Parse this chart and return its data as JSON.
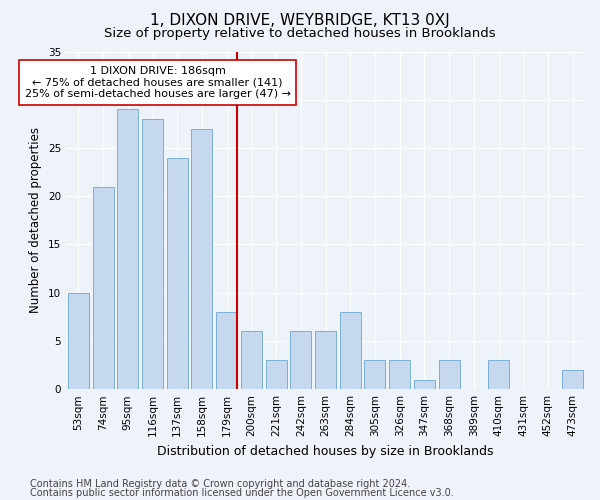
{
  "title": "1, DIXON DRIVE, WEYBRIDGE, KT13 0XJ",
  "subtitle": "Size of property relative to detached houses in Brooklands",
  "xlabel": "Distribution of detached houses by size in Brooklands",
  "ylabel": "Number of detached properties",
  "categories": [
    "53sqm",
    "74sqm",
    "95sqm",
    "116sqm",
    "137sqm",
    "158sqm",
    "179sqm",
    "200sqm",
    "221sqm",
    "242sqm",
    "263sqm",
    "284sqm",
    "305sqm",
    "326sqm",
    "347sqm",
    "368sqm",
    "389sqm",
    "410sqm",
    "431sqm",
    "452sqm",
    "473sqm"
  ],
  "values": [
    10,
    21,
    29,
    28,
    24,
    27,
    8,
    6,
    3,
    6,
    6,
    8,
    3,
    3,
    1,
    3,
    0,
    3,
    0,
    0,
    2
  ],
  "bar_color": "#c5d8ed",
  "bar_edge_color": "#7aafd4",
  "vline_color": "#cc0000",
  "annotation_text": "1 DIXON DRIVE: 186sqm\n← 75% of detached houses are smaller (141)\n25% of semi-detached houses are larger (47) →",
  "annotation_box_color": "#ffffff",
  "annotation_box_edge_color": "#cc0000",
  "ylim": [
    0,
    35
  ],
  "yticks": [
    0,
    5,
    10,
    15,
    20,
    25,
    30,
    35
  ],
  "footer1": "Contains HM Land Registry data © Crown copyright and database right 2024.",
  "footer2": "Contains public sector information licensed under the Open Government Licence v3.0.",
  "bg_color": "#eef2f9",
  "plot_bg_color": "#eef2f9",
  "title_fontsize": 11,
  "subtitle_fontsize": 9.5,
  "axis_label_fontsize": 8.5,
  "tick_fontsize": 7.5,
  "annotation_fontsize": 8,
  "footer_fontsize": 7
}
